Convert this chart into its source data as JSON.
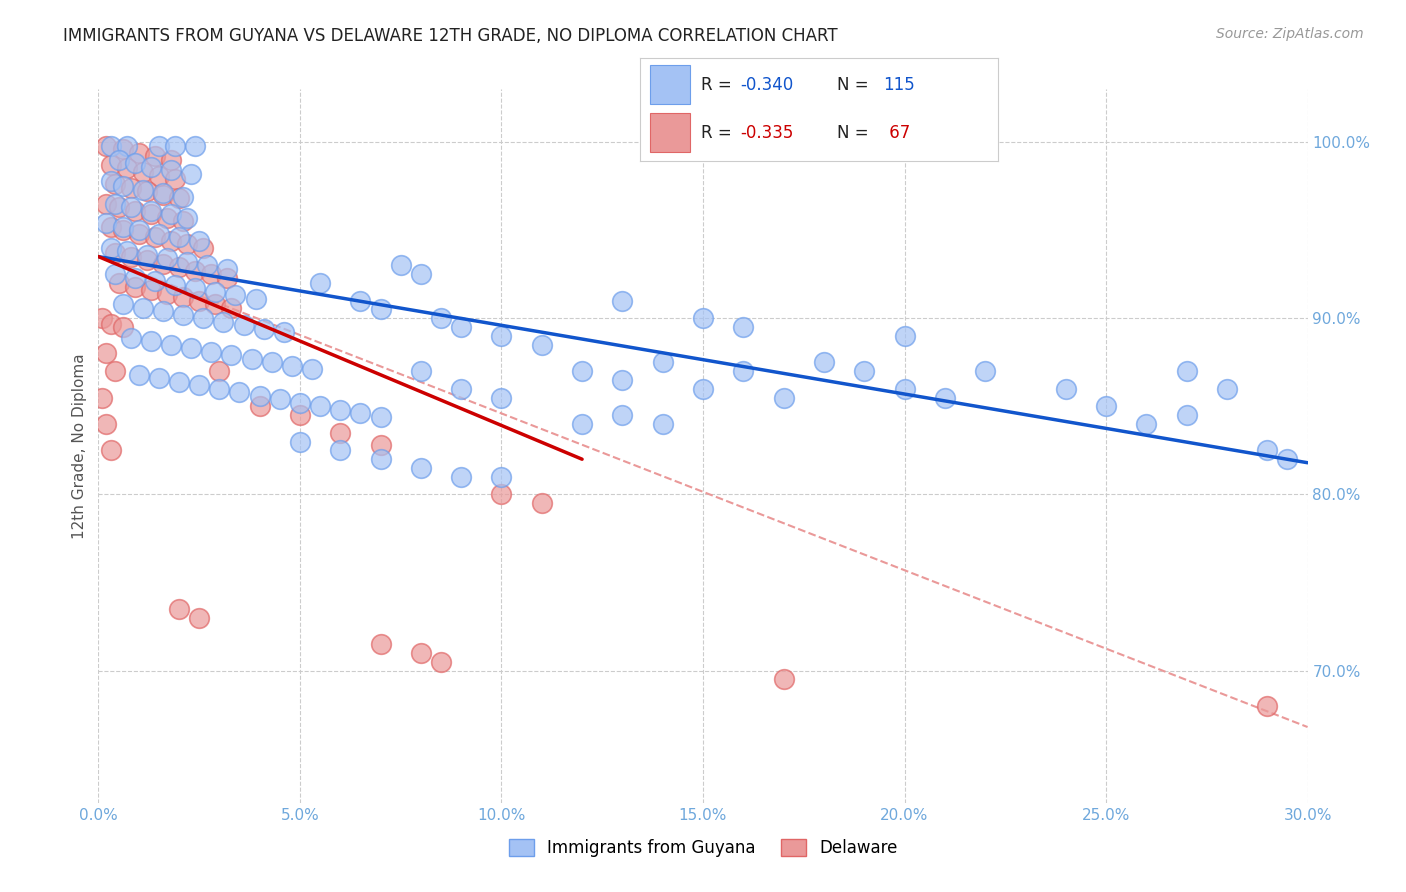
{
  "title": "IMMIGRANTS FROM GUYANA VS DELAWARE 12TH GRADE, NO DIPLOMA CORRELATION CHART",
  "source": "Source: ZipAtlas.com",
  "ylabel": "12th Grade, No Diploma",
  "ylabel_right_ticks": [
    "100.0%",
    "90.0%",
    "80.0%",
    "70.0%"
  ],
  "ylabel_right_vals": [
    1.0,
    0.9,
    0.8,
    0.7
  ],
  "xlim": [
    0.0,
    0.3
  ],
  "ylim": [
    0.625,
    1.03
  ],
  "legend_label_blue": "Immigrants from Guyana",
  "legend_label_pink": "Delaware",
  "blue_color": "#a4c2f4",
  "pink_color": "#ea9999",
  "blue_edge_color": "#6d9eeb",
  "pink_edge_color": "#e06666",
  "blue_line_color": "#1155cc",
  "pink_line_color": "#cc0000",
  "dashed_line_color": "#ea9999",
  "legend_blue_fill": "#a4c2f4",
  "legend_pink_fill": "#ea9999",
  "blue_scatter": [
    [
      0.003,
      0.998
    ],
    [
      0.007,
      0.998
    ],
    [
      0.015,
      0.998
    ],
    [
      0.019,
      0.998
    ],
    [
      0.024,
      0.998
    ],
    [
      0.005,
      0.99
    ],
    [
      0.009,
      0.988
    ],
    [
      0.013,
      0.986
    ],
    [
      0.018,
      0.984
    ],
    [
      0.023,
      0.982
    ],
    [
      0.003,
      0.978
    ],
    [
      0.006,
      0.975
    ],
    [
      0.011,
      0.973
    ],
    [
      0.016,
      0.971
    ],
    [
      0.021,
      0.969
    ],
    [
      0.004,
      0.965
    ],
    [
      0.008,
      0.963
    ],
    [
      0.013,
      0.961
    ],
    [
      0.018,
      0.959
    ],
    [
      0.022,
      0.957
    ],
    [
      0.002,
      0.954
    ],
    [
      0.006,
      0.952
    ],
    [
      0.01,
      0.95
    ],
    [
      0.015,
      0.948
    ],
    [
      0.02,
      0.946
    ],
    [
      0.025,
      0.944
    ],
    [
      0.003,
      0.94
    ],
    [
      0.007,
      0.938
    ],
    [
      0.012,
      0.936
    ],
    [
      0.017,
      0.934
    ],
    [
      0.022,
      0.932
    ],
    [
      0.027,
      0.93
    ],
    [
      0.032,
      0.928
    ],
    [
      0.004,
      0.925
    ],
    [
      0.009,
      0.923
    ],
    [
      0.014,
      0.921
    ],
    [
      0.019,
      0.919
    ],
    [
      0.024,
      0.917
    ],
    [
      0.029,
      0.915
    ],
    [
      0.034,
      0.913
    ],
    [
      0.039,
      0.911
    ],
    [
      0.006,
      0.908
    ],
    [
      0.011,
      0.906
    ],
    [
      0.016,
      0.904
    ],
    [
      0.021,
      0.902
    ],
    [
      0.026,
      0.9
    ],
    [
      0.031,
      0.898
    ],
    [
      0.036,
      0.896
    ],
    [
      0.041,
      0.894
    ],
    [
      0.046,
      0.892
    ],
    [
      0.008,
      0.889
    ],
    [
      0.013,
      0.887
    ],
    [
      0.018,
      0.885
    ],
    [
      0.023,
      0.883
    ],
    [
      0.028,
      0.881
    ],
    [
      0.033,
      0.879
    ],
    [
      0.038,
      0.877
    ],
    [
      0.043,
      0.875
    ],
    [
      0.048,
      0.873
    ],
    [
      0.053,
      0.871
    ],
    [
      0.01,
      0.868
    ],
    [
      0.015,
      0.866
    ],
    [
      0.02,
      0.864
    ],
    [
      0.025,
      0.862
    ],
    [
      0.03,
      0.86
    ],
    [
      0.035,
      0.858
    ],
    [
      0.04,
      0.856
    ],
    [
      0.045,
      0.854
    ],
    [
      0.05,
      0.852
    ],
    [
      0.055,
      0.85
    ],
    [
      0.06,
      0.848
    ],
    [
      0.065,
      0.846
    ],
    [
      0.07,
      0.844
    ],
    [
      0.075,
      0.93
    ],
    [
      0.08,
      0.925
    ],
    [
      0.085,
      0.9
    ],
    [
      0.09,
      0.895
    ],
    [
      0.1,
      0.89
    ],
    [
      0.11,
      0.885
    ],
    [
      0.055,
      0.92
    ],
    [
      0.065,
      0.91
    ],
    [
      0.07,
      0.905
    ],
    [
      0.08,
      0.87
    ],
    [
      0.09,
      0.86
    ],
    [
      0.1,
      0.855
    ],
    [
      0.12,
      0.87
    ],
    [
      0.13,
      0.865
    ],
    [
      0.14,
      0.875
    ],
    [
      0.15,
      0.86
    ],
    [
      0.16,
      0.87
    ],
    [
      0.17,
      0.855
    ],
    [
      0.18,
      0.875
    ],
    [
      0.19,
      0.87
    ],
    [
      0.2,
      0.86
    ],
    [
      0.21,
      0.855
    ],
    [
      0.15,
      0.9
    ],
    [
      0.16,
      0.895
    ],
    [
      0.13,
      0.91
    ],
    [
      0.25,
      0.85
    ],
    [
      0.26,
      0.84
    ],
    [
      0.27,
      0.845
    ],
    [
      0.29,
      0.825
    ],
    [
      0.295,
      0.82
    ],
    [
      0.2,
      0.89
    ],
    [
      0.22,
      0.87
    ],
    [
      0.24,
      0.86
    ],
    [
      0.27,
      0.87
    ],
    [
      0.28,
      0.86
    ],
    [
      0.05,
      0.83
    ],
    [
      0.06,
      0.825
    ],
    [
      0.07,
      0.82
    ],
    [
      0.08,
      0.815
    ],
    [
      0.09,
      0.81
    ],
    [
      0.1,
      0.81
    ],
    [
      0.12,
      0.84
    ],
    [
      0.13,
      0.845
    ],
    [
      0.14,
      0.84
    ]
  ],
  "pink_scatter": [
    [
      0.002,
      0.998
    ],
    [
      0.006,
      0.996
    ],
    [
      0.01,
      0.994
    ],
    [
      0.014,
      0.992
    ],
    [
      0.018,
      0.99
    ],
    [
      0.003,
      0.987
    ],
    [
      0.007,
      0.985
    ],
    [
      0.011,
      0.983
    ],
    [
      0.015,
      0.981
    ],
    [
      0.019,
      0.979
    ],
    [
      0.004,
      0.976
    ],
    [
      0.008,
      0.974
    ],
    [
      0.012,
      0.972
    ],
    [
      0.016,
      0.97
    ],
    [
      0.02,
      0.968
    ],
    [
      0.002,
      0.965
    ],
    [
      0.005,
      0.963
    ],
    [
      0.009,
      0.961
    ],
    [
      0.013,
      0.959
    ],
    [
      0.017,
      0.957
    ],
    [
      0.021,
      0.955
    ],
    [
      0.003,
      0.952
    ],
    [
      0.006,
      0.95
    ],
    [
      0.01,
      0.948
    ],
    [
      0.014,
      0.946
    ],
    [
      0.018,
      0.944
    ],
    [
      0.022,
      0.942
    ],
    [
      0.026,
      0.94
    ],
    [
      0.004,
      0.937
    ],
    [
      0.008,
      0.935
    ],
    [
      0.012,
      0.933
    ],
    [
      0.016,
      0.931
    ],
    [
      0.02,
      0.929
    ],
    [
      0.024,
      0.927
    ],
    [
      0.028,
      0.925
    ],
    [
      0.032,
      0.923
    ],
    [
      0.005,
      0.92
    ],
    [
      0.009,
      0.918
    ],
    [
      0.013,
      0.916
    ],
    [
      0.017,
      0.914
    ],
    [
      0.021,
      0.912
    ],
    [
      0.025,
      0.91
    ],
    [
      0.029,
      0.908
    ],
    [
      0.033,
      0.906
    ],
    [
      0.001,
      0.9
    ],
    [
      0.003,
      0.897
    ],
    [
      0.006,
      0.895
    ],
    [
      0.002,
      0.88
    ],
    [
      0.004,
      0.87
    ],
    [
      0.001,
      0.855
    ],
    [
      0.002,
      0.84
    ],
    [
      0.003,
      0.825
    ],
    [
      0.03,
      0.87
    ],
    [
      0.04,
      0.85
    ],
    [
      0.05,
      0.845
    ],
    [
      0.06,
      0.835
    ],
    [
      0.07,
      0.828
    ],
    [
      0.1,
      0.8
    ],
    [
      0.11,
      0.795
    ],
    [
      0.02,
      0.735
    ],
    [
      0.025,
      0.73
    ],
    [
      0.07,
      0.715
    ],
    [
      0.08,
      0.71
    ],
    [
      0.085,
      0.705
    ],
    [
      0.17,
      0.695
    ],
    [
      0.29,
      0.68
    ]
  ],
  "blue_trendline": [
    [
      0.0,
      0.935
    ],
    [
      0.3,
      0.818
    ]
  ],
  "pink_trendline": [
    [
      0.0,
      0.935
    ],
    [
      0.12,
      0.82
    ]
  ],
  "dashed_trendline": [
    [
      0.0,
      0.935
    ],
    [
      0.3,
      0.668
    ]
  ]
}
